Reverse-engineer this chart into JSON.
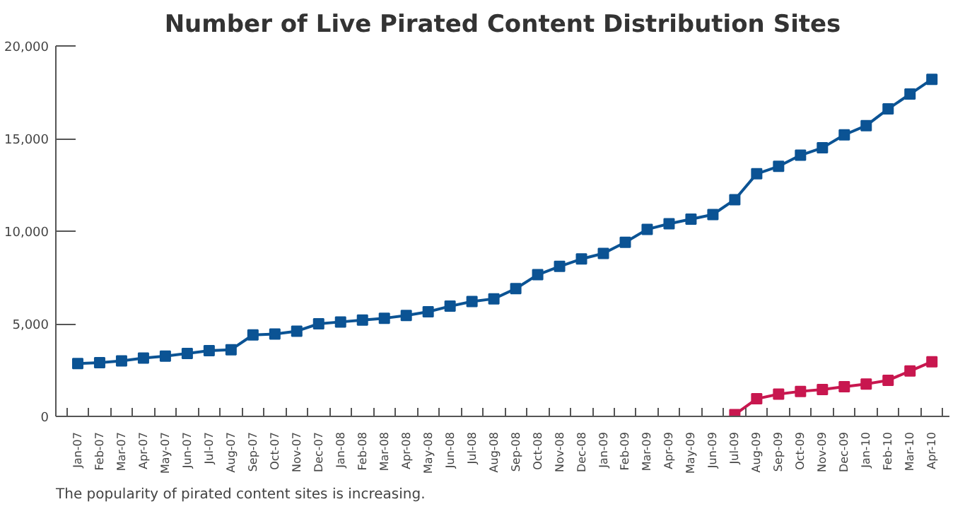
{
  "chart_data": {
    "type": "line",
    "title": "Number of Live Pirated Content Distribution Sites",
    "categories": [
      "Jan-07",
      "Feb-07",
      "Mar-07",
      "Apr-07",
      "May-07",
      "Jun-07",
      "Jul-07",
      "Aug-07",
      "Sep-07",
      "Oct-07",
      "Nov-07",
      "Dec-07",
      "Jan-08",
      "Feb-08",
      "Mar-08",
      "Apr-08",
      "May-08",
      "Jun-08",
      "Jul-08",
      "Aug-08",
      "Sep-08",
      "Oct-08",
      "Nov-08",
      "Dec-08",
      "Jan-09",
      "Feb-09",
      "Mar-09",
      "Apr-09",
      "May-09",
      "Jun-09",
      "Jul-09",
      "Aug-09",
      "Sep-09",
      "Oct-09",
      "Nov-09",
      "Dec-09",
      "Jan-10",
      "Feb-10",
      "Mar-10",
      "Apr-10"
    ],
    "series": [
      {
        "color": "#0b5394",
        "values": [
          2850,
          2900,
          3000,
          3150,
          3250,
          3400,
          3550,
          3600,
          4400,
          4450,
          4600,
          5000,
          5100,
          5200,
          5300,
          5450,
          5650,
          5950,
          6200,
          6350,
          6900,
          7650,
          8100,
          8500,
          8800,
          9400,
          10100,
          10400,
          10650,
          10900,
          11700,
          13100,
          13500,
          14100,
          14500,
          15200,
          15700,
          16600,
          17400,
          18200
        ]
      },
      {
        "color": "#c8174f",
        "values": [
          null,
          null,
          null,
          null,
          null,
          null,
          null,
          null,
          null,
          null,
          null,
          null,
          null,
          null,
          null,
          null,
          null,
          null,
          null,
          null,
          null,
          null,
          null,
          null,
          null,
          null,
          null,
          null,
          null,
          null,
          100,
          950,
          1200,
          1350,
          1450,
          1600,
          1750,
          1950,
          2450,
          2950
        ]
      }
    ],
    "ylim": [
      0,
      20000
    ],
    "yticks": [
      {
        "value": 0,
        "label": "0"
      },
      {
        "value": 5000,
        "label": "5,000"
      },
      {
        "value": 10000,
        "label": "10,000"
      },
      {
        "value": 15000,
        "label": "15,000"
      },
      {
        "value": 20000,
        "label": "20,000"
      }
    ],
    "grid": false,
    "marker": "square",
    "line_style": "solid",
    "annotations": [
      "The popularity of pirated content sites is increasing."
    ]
  }
}
